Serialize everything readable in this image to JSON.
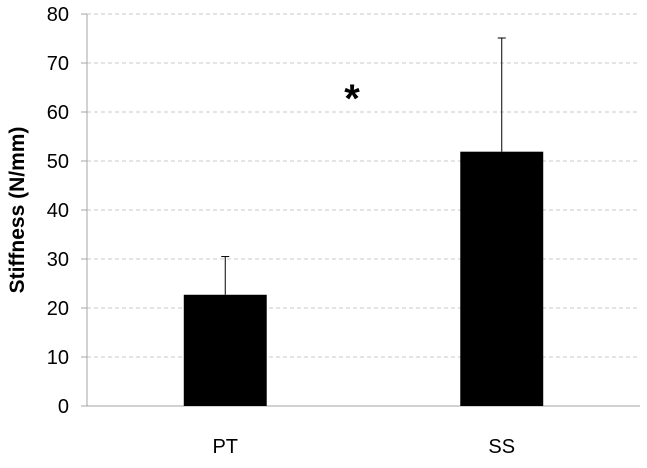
{
  "chart_data": {
    "type": "bar",
    "categories": [
      "PT",
      "SS"
    ],
    "series": [
      {
        "values": [
          22.7,
          51.9
        ],
        "error_upper": [
          30.5,
          75.1
        ]
      }
    ],
    "title": "",
    "xlabel": "",
    "ylabel": "Stiffness (N/mm)",
    "ylim": [
      0,
      80
    ],
    "yticks": [
      0,
      10,
      20,
      30,
      40,
      50,
      60,
      70,
      80
    ],
    "grid": true,
    "annotation": "*",
    "colors": {
      "bar": "#000000",
      "grid": "#c8c8c8",
      "axis": "#a6a6a6"
    }
  }
}
